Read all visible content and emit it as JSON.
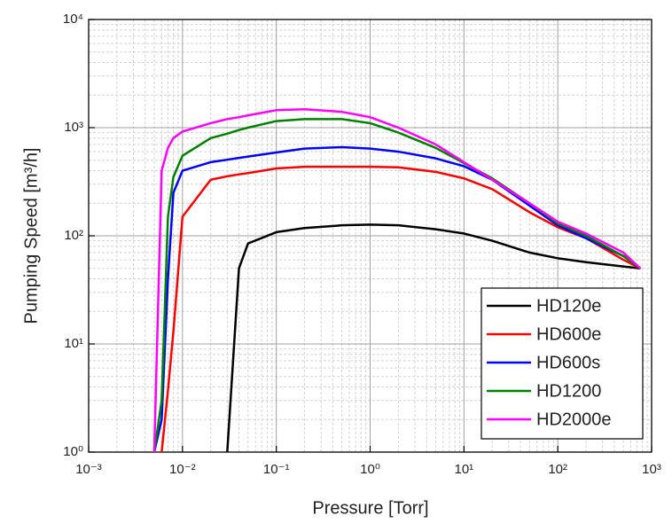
{
  "chart_data": {
    "type": "line",
    "x_label": "Pressure [Torr]",
    "y_label": "Pumping Speed [m³/h]",
    "log_x": true,
    "log_y": true,
    "grid": true,
    "legend_position": "lower right",
    "xlim": [
      0.001,
      1000
    ],
    "ylim": [
      1,
      10000
    ],
    "xticks": [
      {
        "value": 0.001,
        "label": "10⁻³"
      },
      {
        "value": 0.01,
        "label": "10⁻²"
      },
      {
        "value": 0.1,
        "label": "10⁻¹"
      },
      {
        "value": 1,
        "label": "10⁰"
      },
      {
        "value": 10,
        "label": "10¹"
      },
      {
        "value": 100,
        "label": "10²"
      },
      {
        "value": 1000,
        "label": "10³"
      }
    ],
    "yticks": [
      {
        "value": 1,
        "label": "10⁰"
      },
      {
        "value": 10,
        "label": "10¹"
      },
      {
        "value": 100,
        "label": "10²"
      },
      {
        "value": 1000,
        "label": "10³"
      },
      {
        "value": 10000,
        "label": "10⁴"
      }
    ],
    "x": [
      0.005,
      0.006,
      0.007,
      0.008,
      0.01,
      0.02,
      0.03,
      0.04,
      0.05,
      0.1,
      0.2,
      0.5,
      1,
      2,
      5,
      10,
      20,
      50,
      100,
      200,
      500,
      760
    ],
    "series": [
      {
        "name": "HD120e",
        "color": "#000000",
        "values": [
          null,
          null,
          null,
          null,
          null,
          null,
          1,
          50,
          85,
          108,
          118,
          125,
          127,
          125,
          115,
          105,
          90,
          70,
          62,
          57,
          52,
          50
        ]
      },
      {
        "name": "HD600e",
        "color": "#ff0000",
        "values": [
          null,
          1,
          3.7,
          13,
          150,
          330,
          355,
          370,
          380,
          420,
          435,
          435,
          435,
          430,
          390,
          340,
          270,
          165,
          120,
          95,
          60,
          50
        ]
      },
      {
        "name": "HD600s",
        "color": "#0000ff",
        "values": [
          1,
          2,
          40,
          250,
          400,
          480,
          505,
          525,
          540,
          590,
          640,
          660,
          640,
          600,
          520,
          440,
          330,
          190,
          125,
          95,
          65,
          50
        ]
      },
      {
        "name": "HD1200",
        "color": "#008000",
        "values": [
          1,
          3,
          150,
          350,
          550,
          800,
          880,
          950,
          1000,
          1150,
          1200,
          1200,
          1100,
          900,
          650,
          470,
          340,
          200,
          130,
          100,
          65,
          50
        ]
      },
      {
        "name": "HD2000e",
        "color": "#ff00ff",
        "values": [
          1,
          400,
          650,
          800,
          920,
          1100,
          1200,
          1250,
          1300,
          1450,
          1480,
          1400,
          1250,
          1000,
          700,
          480,
          330,
          200,
          135,
          105,
          70,
          50
        ]
      }
    ]
  }
}
